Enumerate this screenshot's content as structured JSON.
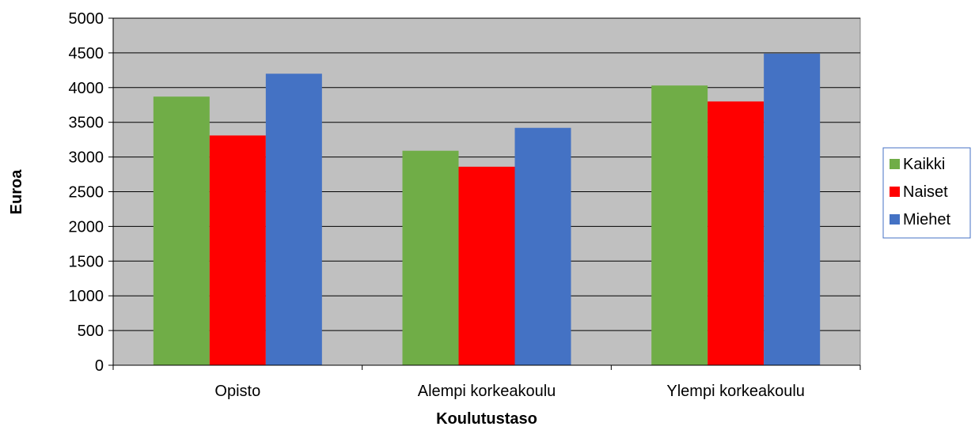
{
  "chart_data": {
    "type": "bar",
    "title": "",
    "xlabel": "Koulutustaso",
    "ylabel": "Euroa",
    "categories": [
      "Opisto",
      "Alempi korkeakoulu",
      "Ylempi korkeakoulu"
    ],
    "series": [
      {
        "name": "Kaikki",
        "color": "#70AD47",
        "values": [
          3870,
          3090,
          4030
        ]
      },
      {
        "name": "Naiset",
        "color": "#FF0000",
        "values": [
          3310,
          2860,
          3800
        ]
      },
      {
        "name": "Miehet",
        "color": "#4472C4",
        "values": [
          4200,
          3420,
          4490
        ]
      }
    ],
    "ylim": [
      0,
      5000
    ],
    "yticks": [
      0,
      500,
      1000,
      1500,
      2000,
      2500,
      3000,
      3500,
      4000,
      4500,
      5000
    ],
    "grid": true,
    "plot_background": "#C0C0C0",
    "legend_position": "right"
  }
}
